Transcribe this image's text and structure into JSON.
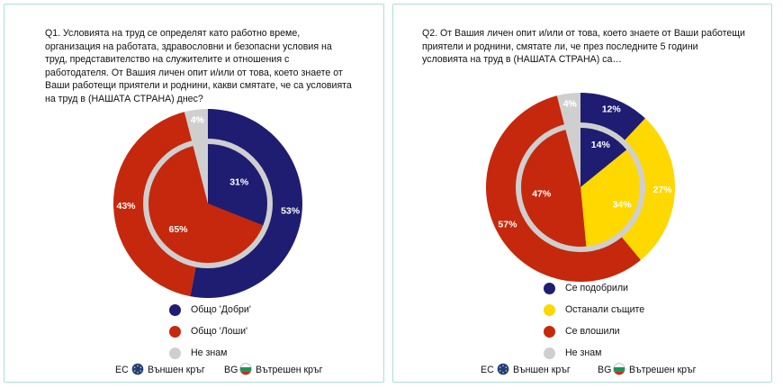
{
  "colors": {
    "good": "#1e1d72",
    "bad": "#c5280c",
    "same": "#ffd800",
    "dontknow": "#cfcfcf",
    "ring": "#cfcfcf",
    "frame": "#a9dfd6",
    "eu_blue": "#1b3d8f",
    "eu_star": "#ffd800",
    "bg_white": "#ffffff",
    "bg_green": "#16965a",
    "bg_red": "#d62612"
  },
  "left_panel": {
    "question": "Q1. Условията на труд се определят като работно време, организация на работата, здравословни и безопасни условия на труд, представителство на служителите и отношения с работодателя. От Вашия личен опит и/или от това, което знаете от Ваши работещи приятели и роднини, какви смятате, че са условията на труд в (НАШАТА СТРАНА) днес?",
    "legend": [
      "Общо 'Добри'",
      "Общо 'Лоши'",
      "Не знам"
    ],
    "circle_legend": {
      "outer_code": "ЕС",
      "outer_label": "Външен кръг",
      "outer_icon": "eu-flag-icon",
      "inner_code": "BG",
      "inner_label": "Вътрешен кръг",
      "inner_icon": "bulgaria-flag-icon"
    }
  },
  "right_panel": {
    "question": "Q2. От Вашия личен опит и/или от това, което знаете от Ваши работещи приятели и роднини, смятате ли, че през последните 5 години условията на труд в (НАШАТА СТРАНА) са…",
    "legend": [
      "Се подобрили",
      "Останали същите",
      "Се влошили",
      "Не знам"
    ],
    "circle_legend": {
      "outer_code": "ЕС",
      "outer_label": "Външен кръг",
      "outer_icon": "eu-flag-icon",
      "inner_code": "BG",
      "inner_label": "Вътрешен кръг",
      "inner_icon": "bulgaria-flag-icon"
    }
  },
  "chart_data": [
    {
      "type": "pie",
      "variant": "nested",
      "title": "",
      "categories": [
        "Общо 'Добри'",
        "Общо 'Лоши'",
        "Не знам"
      ],
      "series": [
        {
          "name": "Външен кръг",
          "values": [
            53,
            43,
            4
          ],
          "labels": [
            "53%",
            "43%",
            "4%"
          ]
        },
        {
          "name": "Вътрешен кръг",
          "values": [
            31,
            65,
            4
          ],
          "labels": [
            "31%",
            "65%",
            "4%"
          ]
        }
      ]
    },
    {
      "type": "pie",
      "variant": "nested",
      "title": "",
      "categories": [
        "Се подобрили",
        "Останали същите",
        "Се влошили",
        "Не знам"
      ],
      "series": [
        {
          "name": "Външен кръг",
          "values": [
            12,
            27,
            57,
            4
          ],
          "labels": [
            "12%",
            "27%",
            "57%",
            "4%"
          ]
        },
        {
          "name": "Вътрешен кръг",
          "values": [
            14,
            34,
            47,
            4
          ],
          "labels": [
            "14%",
            "34%",
            "47%",
            "4%"
          ]
        }
      ]
    }
  ]
}
